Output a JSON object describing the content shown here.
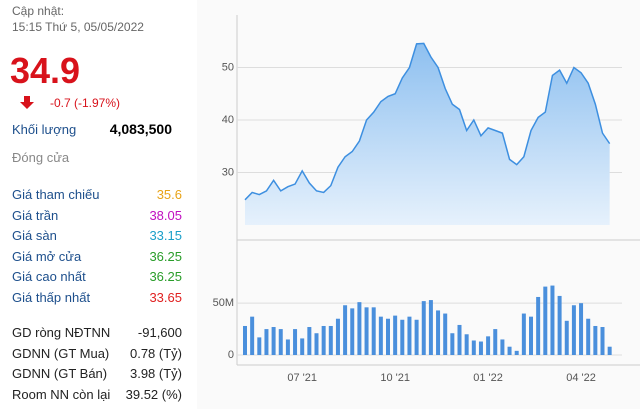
{
  "header": {
    "updated_label": "Cập nhật:",
    "updated_time": "15:15 Thứ 5, 05/05/2022"
  },
  "price": {
    "value": "34.9",
    "change": "-0.7 (-1.97%)"
  },
  "volume": {
    "label": "Khối lượng",
    "value": "4,083,500"
  },
  "status": "Đóng cửa",
  "stats": [
    {
      "label": "Giá tham chiếu",
      "value": "35.6",
      "color": "#e8a317"
    },
    {
      "label": "Giá trần",
      "value": "38.05",
      "color": "#c010c0"
    },
    {
      "label": "Giá sàn",
      "value": "33.15",
      "color": "#1a9fc9"
    },
    {
      "label": "Giá mở cửa",
      "value": "36.25",
      "color": "#2a9d2a"
    },
    {
      "label": "Giá cao nhất",
      "value": "36.25",
      "color": "#2a9d2a"
    },
    {
      "label": "Giá thấp nhất",
      "value": "33.65",
      "color": "#e02020"
    }
  ],
  "foreign": [
    {
      "label": "GD ròng NĐTNN",
      "value": "-91,600"
    },
    {
      "label": "GDNN (GT Mua)",
      "value": "0.78 (Tỷ)"
    },
    {
      "label": "GDNN (GT Bán)",
      "value": "3.98 (Tỷ)"
    },
    {
      "label": "Room NN còn lại",
      "value": "39.52 (%)"
    }
  ],
  "chart_data": [
    {
      "type": "area",
      "color": "#3d8fe0",
      "values": [
        24.8,
        26.2,
        25.8,
        26.5,
        28.5,
        26.5,
        27.3,
        27.8,
        30.3,
        28,
        26.5,
        26.2,
        27.5,
        31,
        33,
        34,
        36,
        40,
        41.5,
        43.5,
        44.5,
        45,
        48,
        50,
        54.5,
        54.6,
        52,
        50,
        46,
        43,
        42,
        38,
        40,
        37,
        38.5,
        38,
        37.5,
        32.5,
        31.5,
        33,
        38,
        40.5,
        41.5,
        48.5,
        49.5,
        47,
        50,
        49,
        47,
        43,
        37.5,
        35.5
      ],
      "ylim": [
        20,
        60
      ],
      "yticks": [
        30,
        40,
        50
      ],
      "grid": true
    },
    {
      "type": "bar",
      "color": "#4a8fdc",
      "categories": [
        null,
        null,
        null,
        null,
        null,
        null,
        null,
        null,
        "07 '21",
        null,
        null,
        null,
        null,
        null,
        null,
        null,
        null,
        null,
        null,
        null,
        null,
        "10 '21",
        null,
        null,
        null,
        null,
        null,
        null,
        null,
        null,
        null,
        null,
        null,
        null,
        "01 '22",
        null,
        null,
        null,
        null,
        null,
        null,
        null,
        null,
        null,
        null,
        null,
        null,
        "04 '22",
        null,
        null,
        null,
        null
      ],
      "values": [
        28000000,
        37000000,
        17000000,
        25000000,
        27000000,
        25000000,
        15000000,
        25000000,
        16000000,
        27000000,
        21000000,
        28000000,
        28000000,
        35000000,
        48000000,
        45000000,
        51000000,
        46000000,
        46000000,
        37000000,
        35000000,
        38000000,
        34000000,
        37000000,
        34000000,
        52000000,
        53000000,
        43000000,
        40000000,
        21000000,
        29000000,
        20000000,
        14000000,
        13000000,
        18000000,
        25000000,
        15000000,
        8000000,
        4000000,
        40000000,
        37000000,
        56000000,
        66000000,
        67000000,
        57000000,
        33000000,
        48000000,
        50000000,
        35000000,
        28000000,
        27000000,
        8000000
      ],
      "ylim": [
        0,
        110000000
      ],
      "yticks": [
        0,
        {
          "value": 50000000,
          "label": "50M"
        }
      ],
      "grid": true
    }
  ]
}
